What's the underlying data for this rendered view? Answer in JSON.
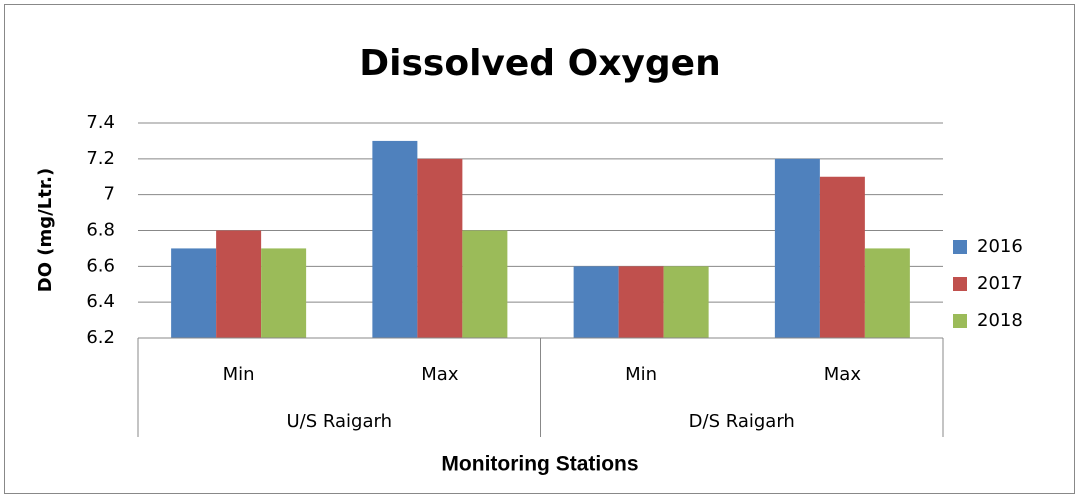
{
  "chart_data": {
    "type": "bar",
    "title": "Dissolved Oxygen",
    "y_label": "DO (mg/Ltr.)",
    "x_label": "Monitoring Stations",
    "categories": [
      "Min",
      "Max",
      "Min",
      "Max"
    ],
    "group_labels": [
      "U/S Raigarh",
      "D/S Raigarh"
    ],
    "series": [
      {
        "name": "2016",
        "color": "#4f81bd",
        "values": [
          6.7,
          7.3,
          6.6,
          7.2
        ]
      },
      {
        "name": "2017",
        "color": "#c0504d",
        "values": [
          6.8,
          7.2,
          6.6,
          7.1
        ]
      },
      {
        "name": "2018",
        "color": "#9bbb59",
        "values": [
          6.7,
          6.8,
          6.6,
          6.7
        ]
      }
    ],
    "ylim": [
      6.2,
      7.4
    ],
    "yticks": [
      6.2,
      6.4,
      6.6,
      6.8,
      7,
      7.2,
      7.4
    ],
    "grid": true,
    "legend": "right"
  }
}
